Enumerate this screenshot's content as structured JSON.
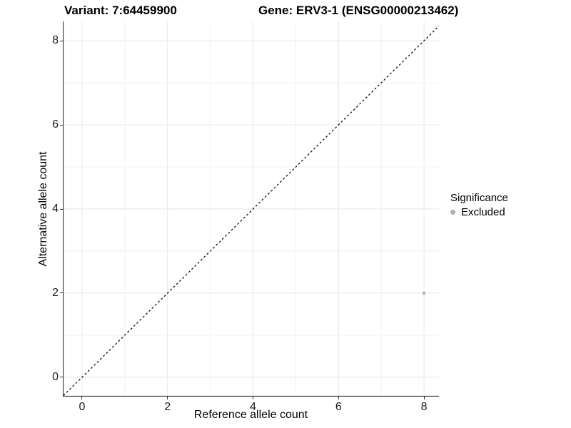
{
  "chart_data": {
    "type": "scatter",
    "titles": [
      "Variant: 7:64459900",
      "Gene: ERV3-1 (ENSG00000213462)"
    ],
    "xlabel": "Reference allele count",
    "ylabel": "Alternative allele count",
    "xlim": [
      -0.45,
      8.35
    ],
    "ylim": [
      -0.46,
      8.46
    ],
    "xticks": [
      0,
      2,
      4,
      6,
      8
    ],
    "yticks": [
      0,
      2,
      4,
      6,
      8
    ],
    "xticks_minor": [
      1,
      3,
      5,
      7
    ],
    "yticks_minor": [
      1,
      3,
      5,
      7
    ],
    "grid": true,
    "series": [
      {
        "name": "Excluded",
        "color": "#b3b3b3",
        "points": [
          {
            "x": 8,
            "y": 2
          }
        ]
      }
    ],
    "abline": {
      "slope": 1,
      "intercept": 0,
      "style": "dashed",
      "color": "#000000"
    },
    "legend": {
      "title": "Significance",
      "position": "right",
      "items": [
        {
          "label": "Excluded",
          "color": "#b0b0b0"
        }
      ]
    },
    "colors": {
      "background": "#ffffff",
      "grid_major": "#e6e6e6",
      "grid_minor": "#f2f2f2",
      "axis_line": "#333333",
      "tick_text": "#1a1a1a",
      "title_text": "#000000"
    }
  }
}
